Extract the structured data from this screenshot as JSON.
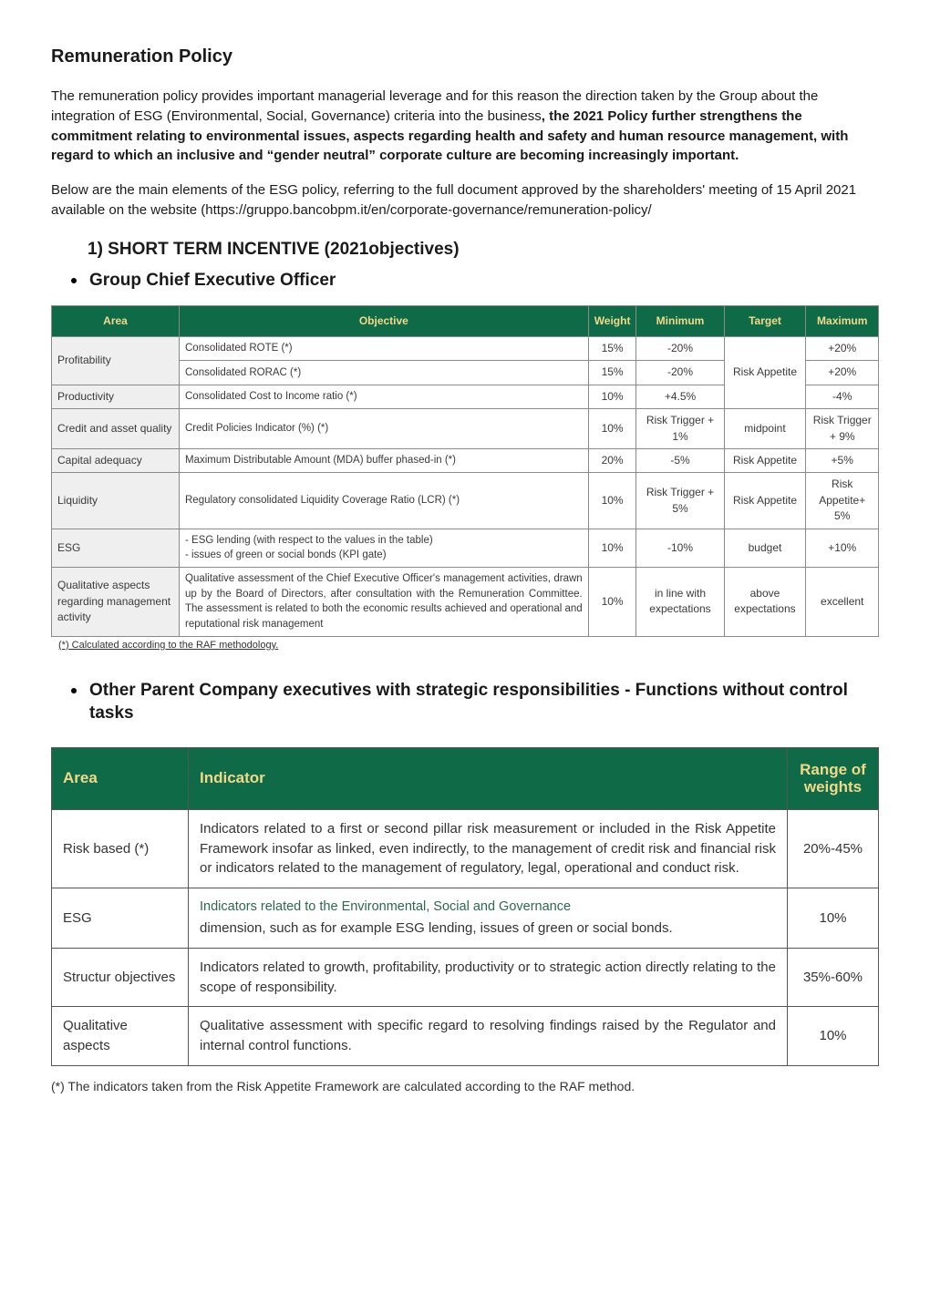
{
  "title": "Remuneration Policy",
  "intro_plain": "The remuneration policy provides important managerial leverage and for this reason the direction taken by the Group about the integration of ESG (Environmental, Social, Governance) criteria into the business",
  "intro_bold": ", the 2021 Policy further strengthens the commitment relating to environmental issues, aspects regarding health and safety and human resource management, with regard to which an inclusive and “gender neutral” corporate culture are becoming increasingly important.",
  "below": "Below are the main elements of the ESG policy, referring to the full document approved by the shareholders' meeting of 15 April 2021 available on the website (https://gruppo.bancobpm.it/en/corporate-governance/remuneration-policy/",
  "section1_heading": "1)  SHORT TERM INCENTIVE (2021objectives)",
  "section1_sub": "Group Chief Executive Officer",
  "t1": {
    "headers": [
      "Area",
      "Objective",
      "Weight",
      "Minimum",
      "Target",
      "Maximum"
    ],
    "rows": [
      {
        "area": "Profitability",
        "area_rowspan": 2,
        "obj": "Consolidated ROTE (*)",
        "weight": "15%",
        "min": "-20%",
        "target_rowspan": 3,
        "target": "Risk Appetite",
        "max": "+20%"
      },
      {
        "obj": "Consolidated RORAC (*)",
        "weight": "15%",
        "min": "-20%",
        "max": "+20%"
      },
      {
        "area": "Productivity",
        "obj": "Consolidated Cost to Income ratio (*)",
        "weight": "10%",
        "min": "+4.5%",
        "max": "-4%"
      },
      {
        "area": "Credit and asset quality",
        "obj": "Credit Policies Indicator (%) (*)",
        "weight": "10%",
        "min": "Risk Trigger + 1%",
        "target": "midpoint",
        "max": "Risk Trigger + 9%"
      },
      {
        "area": "Capital adequacy",
        "obj": "Maximum Distributable Amount (MDA) buffer phased-in (*)",
        "weight": "20%",
        "min": "-5%",
        "target": "Risk Appetite",
        "max": "+5%"
      },
      {
        "area": "Liquidity",
        "obj": "Regulatory consolidated Liquidity Coverage Ratio (LCR) (*)",
        "weight": "10%",
        "min": "Risk Trigger + 5%",
        "target": "Risk Appetite",
        "max": "Risk Appetite+ 5%"
      },
      {
        "area": "ESG",
        "obj": "- ESG lending (with respect to the values in the table)\n- issues of green or social bonds (KPI gate)",
        "weight": "10%",
        "min": "-10%",
        "target": "budget",
        "max": "+10%"
      },
      {
        "area": "Qualitative aspects regarding management activity",
        "obj": "Qualitative assessment of the Chief Executive Officer's management activities, drawn up by the Board of Directors, after consultation with the Remuneration Committee. The assessment is related to both the economic results achieved and operational and reputational risk management",
        "weight": "10%",
        "min": "in line with expectations",
        "target": "above expectations",
        "max": "excellent"
      }
    ],
    "footnote": "(*) Calculated according to the RAF methodology."
  },
  "section2_heading": "Other Parent Company executives with strategic responsibilities  - Functions without control tasks",
  "t2": {
    "headers": {
      "area": "Area",
      "indicator": "Indicator",
      "range": "Range of weights"
    },
    "rows": [
      {
        "area": "Risk based (*)",
        "indicator": "Indicators related to a first or second pillar risk measurement or included in the Risk Appetite Framework insofar as linked, even indirectly, to the management of credit risk and financial risk or indicators related to the management of regulatory, legal, operational and conduct risk.",
        "range": "20%-45%"
      },
      {
        "area": "ESG",
        "indicator_hdr": "Indicators related to the Environmental, Social and Governance",
        "indicator_rest": "dimension, such as for example ESG lending, issues of green or social bonds.",
        "range": "10%"
      },
      {
        "area": "Structur objectives",
        "indicator": "Indicators related to growth, profitability, productivity or to strategic action directly relating to the scope of responsibility.",
        "range": "35%-60%"
      },
      {
        "area": "Qualitative aspects",
        "indicator": "Qualitative assessment with specific regard to resolving findings raised by the Regulator and internal control functions.",
        "range": "10%"
      }
    ],
    "footnote": "(*) The indicators taken from the Risk Appetite Framework are calculated according to the RAF method."
  },
  "colors": {
    "header_bg": "#0f6a48",
    "header_fg": "#f2d98a",
    "area_bg": "#efefef",
    "border": "#8a8a8a",
    "esg_hdr": "#2b6a4a"
  }
}
